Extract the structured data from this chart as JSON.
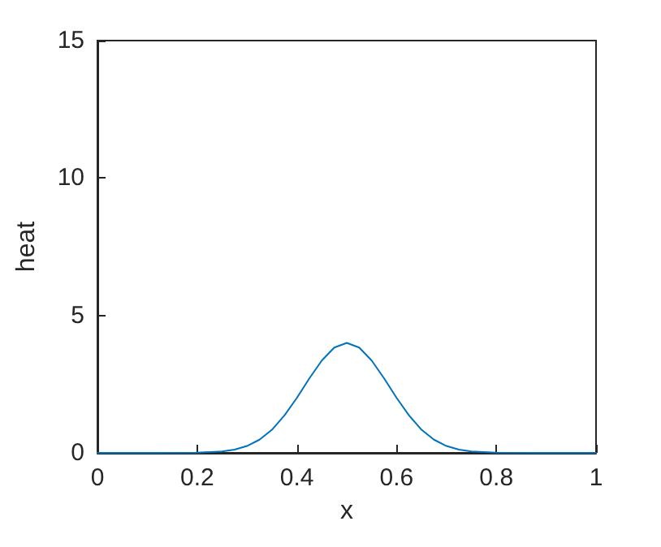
{
  "chart_data": {
    "type": "line",
    "xlabel": "x",
    "ylabel": "heat",
    "x": [
      0,
      0.1,
      0.2,
      0.25,
      0.275,
      0.3,
      0.325,
      0.35,
      0.375,
      0.4,
      0.425,
      0.45,
      0.475,
      0.5,
      0.525,
      0.55,
      0.575,
      0.6,
      0.625,
      0.65,
      0.675,
      0.7,
      0.725,
      0.75,
      0.8,
      0.9,
      1
    ],
    "series": [
      {
        "color": "#0072bd",
        "values": [
          0,
          0,
          0.01,
          0.05,
          0.12,
          0.25,
          0.48,
          0.84,
          1.36,
          2.0,
          2.71,
          3.36,
          3.83,
          4,
          3.83,
          3.36,
          2.71,
          2.0,
          1.36,
          0.84,
          0.48,
          0.25,
          0.12,
          0.05,
          0.01,
          0,
          0
        ]
      }
    ],
    "xlim": [
      0,
      1
    ],
    "xticks": [
      0,
      0.2,
      0.4,
      0.6,
      0.8,
      1
    ],
    "ylim": [
      0,
      15
    ],
    "yticks": [
      0,
      5,
      10,
      15
    ],
    "grid": false,
    "marker": "none",
    "line_style": "solid"
  }
}
